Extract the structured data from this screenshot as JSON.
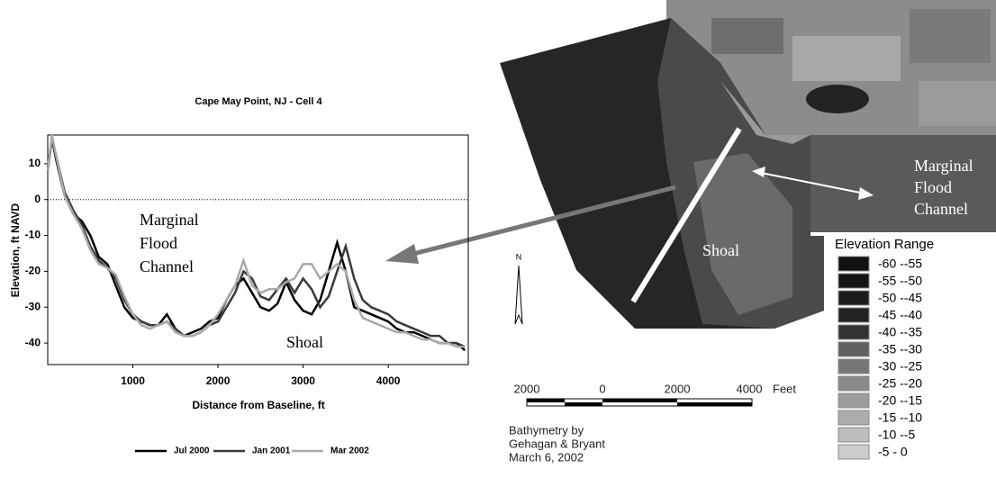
{
  "chart_data": {
    "type": "line",
    "title": "Cape May Point, NJ - Cell 4",
    "x_label": "Distance from Baseline, ft",
    "y_label": "Elevation, ft NAVD",
    "x": [
      0,
      50,
      100,
      200,
      300,
      400,
      500,
      600,
      700,
      800,
      900,
      1000,
      1100,
      1200,
      1300,
      1400,
      1500,
      1600,
      1700,
      1800,
      1900,
      2000,
      2100,
      2200,
      2300,
      2400,
      2500,
      2600,
      2700,
      2800,
      2900,
      3000,
      3100,
      3200,
      3300,
      3400,
      3500,
      3600,
      3700,
      3800,
      3900,
      4000,
      4100,
      4200,
      4300,
      4400,
      4500,
      4600,
      4700,
      4800,
      4900
    ],
    "series": [
      {
        "name": "Jul 2000",
        "color": "#000000",
        "values": [
          8,
          17,
          11,
          1,
          -4,
          -6,
          -10,
          -16,
          -18,
          -24,
          -30,
          -33,
          -34,
          -35,
          -35,
          -32,
          -36,
          -38,
          -37,
          -36,
          -34,
          -33,
          -28,
          -24,
          -22,
          -26,
          -30,
          -31,
          -29,
          -23,
          -28,
          -31,
          -32,
          -28,
          -20,
          -12,
          -20,
          -30,
          -31,
          -32,
          -33,
          -34,
          -36,
          -37,
          -37,
          -38,
          -39,
          -40,
          -40,
          -40,
          -42
        ]
      },
      {
        "name": "Jan 2001",
        "color": "#3a3a3a",
        "values": [
          9,
          17,
          12,
          2,
          -3,
          -7,
          -13,
          -17,
          -19,
          -22,
          -28,
          -32,
          -34,
          -35,
          -35,
          -34,
          -36,
          -38,
          -38,
          -37,
          -35,
          -34,
          -30,
          -26,
          -20,
          -22,
          -27,
          -28,
          -25,
          -22,
          -26,
          -22,
          -25,
          -30,
          -27,
          -20,
          -13,
          -22,
          -28,
          -30,
          -31,
          -32,
          -34,
          -35,
          -36,
          -37,
          -38,
          -38,
          -40,
          -40,
          -41
        ]
      },
      {
        "name": "Mar 2002",
        "color": "#aaaaaa",
        "values": [
          8,
          18,
          12,
          1,
          -4,
          -8,
          -14,
          -18,
          -19,
          -21,
          -27,
          -32,
          -35,
          -36,
          -35,
          -34,
          -37,
          -38,
          -38,
          -37,
          -35,
          -32,
          -28,
          -24,
          -17,
          -24,
          -26,
          -25,
          -25,
          -23,
          -22,
          -18,
          -18,
          -22,
          -20,
          -18,
          -20,
          -28,
          -33,
          -34,
          -35,
          -36,
          -37,
          -37,
          -38,
          -39,
          -39,
          -40,
          -40,
          -41,
          -41
        ]
      }
    ],
    "xlim": [
      0,
      4940
    ],
    "xticks": [
      1000,
      2000,
      3000,
      4000
    ],
    "ylim": [
      -46,
      18
    ],
    "yticks": [
      10,
      0,
      -10,
      -20,
      -30,
      -40
    ],
    "reference_line": 0,
    "legend": "bottom",
    "annotations": [
      {
        "lines": [
          "Marginal",
          "Flood",
          "Channel"
        ]
      },
      {
        "lines": [
          "Shoal"
        ]
      }
    ]
  },
  "map": {
    "channel": [
      "Marginal",
      "Flood",
      "Channel"
    ],
    "shoal": "Shoal",
    "north": "N",
    "scale_bar": {
      "labels": [
        "2000",
        "0",
        "2000",
        "4000"
      ],
      "unit": "Feet"
    },
    "credit": [
      "Bathymetry by",
      "Gehagan & Bryant",
      "March 6, 2002"
    ],
    "legend": {
      "title": "Elevation Range",
      "items": [
        {
          "label": "-60 --55",
          "color": "#111111"
        },
        {
          "label": "-55 --50",
          "color": "#161616"
        },
        {
          "label": "-50 --45",
          "color": "#1c1c1c"
        },
        {
          "label": "-45 --40",
          "color": "#222222"
        },
        {
          "label": "-40 --35",
          "color": "#333333"
        },
        {
          "label": "-35 --30",
          "color": "#606060"
        },
        {
          "label": "-30 --25",
          "color": "#777777"
        },
        {
          "label": "-25 --20",
          "color": "#8a8a8a"
        },
        {
          "label": "-20 --15",
          "color": "#9c9c9c"
        },
        {
          "label": "-15 --10",
          "color": "#adadad"
        },
        {
          "label": "-10 --5",
          "color": "#bdbdbd"
        },
        {
          "label": "-5 - 0",
          "color": "#cccccc"
        }
      ]
    }
  }
}
